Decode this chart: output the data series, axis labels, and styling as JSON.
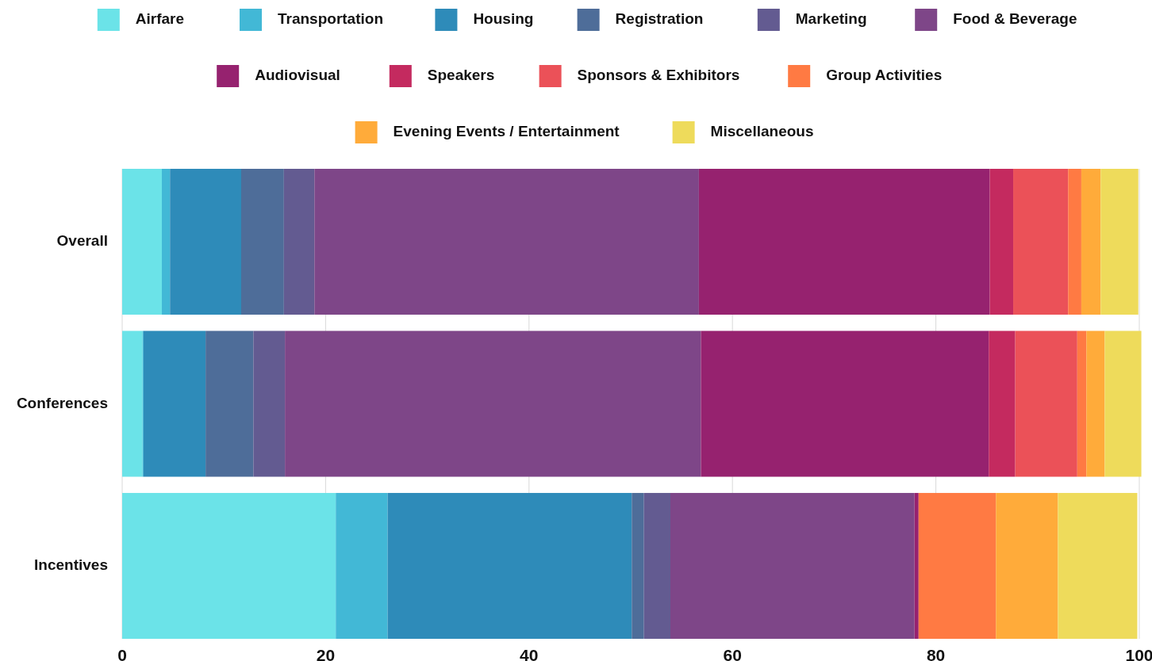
{
  "chart_data": {
    "type": "bar",
    "orientation": "horizontal",
    "stacked": true,
    "categories": [
      "Overall",
      "Conferences",
      "Incentives"
    ],
    "series": [
      {
        "name": "Airfare",
        "color": "#6be3e8",
        "values": [
          3.9,
          2.0,
          21.0
        ]
      },
      {
        "name": "Transportation",
        "color": "#42b8d6",
        "values": [
          0.8,
          0.1,
          5.1
        ]
      },
      {
        "name": "Housing",
        "color": "#2e8bb9",
        "values": [
          7.0,
          6.1,
          24.0
        ]
      },
      {
        "name": "Registration",
        "color": "#4e6d99",
        "values": [
          4.2,
          4.7,
          1.2
        ]
      },
      {
        "name": "Marketing",
        "color": "#635b91",
        "values": [
          3.0,
          3.1,
          2.6
        ]
      },
      {
        "name": "Food & Beverage",
        "color": "#7e4688",
        "values": [
          37.8,
          40.9,
          24.0
        ]
      },
      {
        "name": "Audiovisual",
        "color": "#96226f",
        "values": [
          28.6,
          28.3,
          0.4
        ]
      },
      {
        "name": "Speakers",
        "color": "#c42a5f",
        "values": [
          2.3,
          2.6,
          0
        ]
      },
      {
        "name": "Sponsors & Exhibitors",
        "color": "#eb5158",
        "values": [
          5.4,
          6.1,
          0
        ]
      },
      {
        "name": "Group Activities",
        "color": "#ff7a43",
        "values": [
          1.3,
          0.9,
          7.6
        ]
      },
      {
        "name": "Evening Events / Entertainment",
        "color": "#ffab3a",
        "values": [
          1.9,
          1.8,
          6.1
        ]
      },
      {
        "name": "Miscellaneous",
        "color": "#eedb5b",
        "values": [
          3.7,
          3.6,
          7.8
        ]
      }
    ],
    "xlim": [
      0,
      100
    ],
    "xticks": [
      0,
      20,
      40,
      60,
      80,
      100
    ],
    "grid": "x",
    "legend": "top"
  }
}
